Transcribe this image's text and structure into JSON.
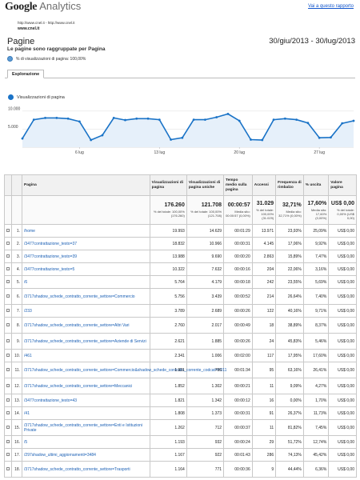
{
  "header": {
    "logo_google": "Google",
    "logo_analytics": "Analytics",
    "report_link": "Vai a questo rapporto",
    "urls": "http://www.cnel.it - http://www.cnel.it",
    "site": "www.cnel.it"
  },
  "report": {
    "title": "Pagine",
    "subtitle": "Le pagine sono raggruppate per Pagina",
    "date_range": "30/giu/2013 - 30/lug/2013",
    "segment_label": "% di visualizzazioni di pagina: 100,00%",
    "tab": "Esplorazione"
  },
  "chart_data": {
    "type": "area",
    "series_name": "Visualizzazioni di pagina",
    "y_ticks": [
      "10.000",
      "5.000"
    ],
    "ylim": [
      0,
      11500
    ],
    "x_tick_labels": [
      "6 lug",
      "13 lug",
      "20 lug",
      "27 lug"
    ],
    "x_tick_index": [
      6,
      13,
      20,
      27
    ],
    "values": [
      2400,
      7600,
      8100,
      8100,
      7900,
      7100,
      2000,
      3300,
      8100,
      7500,
      7900,
      7900,
      7600,
      2100,
      2600,
      7600,
      7600,
      8300,
      9200,
      7300,
      2100,
      2000,
      7600,
      7900,
      7600,
      6700,
      2600,
      2700,
      6600,
      7300
    ],
    "color": "#1a73c7"
  },
  "table": {
    "headers": [
      "Pagina",
      "Visualizzazioni di pagina",
      "Visualizzazioni di pagina uniche",
      "Tempo medio sulla pagina",
      "Accessi",
      "Frequenza di rimbalzo",
      "% uscita",
      "Valore pagina"
    ],
    "summary": [
      {
        "big": "176.260",
        "sub": "% del totale: 100,00% (176.260)"
      },
      {
        "big": "121.708",
        "sub": "% del totale: 100,00% (121.708)"
      },
      {
        "big": "00:00:57",
        "sub": "Media sito: 00:00:57 (0,00%)"
      },
      {
        "big": "31.029",
        "sub": "% del totale: 100,00% (31.029)"
      },
      {
        "big": "32,71%",
        "sub": "Media sito: 32,71% (0,00%)"
      },
      {
        "big": "17,60%",
        "sub": "Media sito: 17,60% (0,00%)"
      },
      {
        "big": "US$ 0,00",
        "sub": "% del totale: 0,00% (US$ 0,00)"
      }
    ],
    "rows": [
      {
        "n": "1.",
        "page": "/home",
        "v": [
          "19.993",
          "14.629",
          "00:01:29",
          "13.971",
          "23,93%",
          "25,09%",
          "US$ 0,00"
        ]
      },
      {
        "n": "2.",
        "page": "/3477contrattazione_testo=37",
        "v": [
          "18.832",
          "10.966",
          "00:00:31",
          "4.145",
          "17,06%",
          "9,92%",
          "US$ 0,00"
        ]
      },
      {
        "n": "3.",
        "page": "/3477contrattazione_testo=39",
        "v": [
          "13.988",
          "9.690",
          "00:00:20",
          "2.863",
          "15,89%",
          "7,47%",
          "US$ 0,00"
        ]
      },
      {
        "n": "4.",
        "page": "/3477contrattazione_testo=5",
        "v": [
          "10.322",
          "7.632",
          "00:00:16",
          "204",
          "22,06%",
          "3,16%",
          "US$ 0,00"
        ]
      },
      {
        "n": "5.",
        "page": "/6",
        "v": [
          "5.764",
          "4.179",
          "00:00:18",
          "242",
          "23,55%",
          "5,69%",
          "US$ 0,00"
        ]
      },
      {
        "n": "6.",
        "page": "/3717shadow_schede_contratto_corrente_settore=Commercio",
        "v": [
          "5.756",
          "3.439",
          "00:00:52",
          "214",
          "26,64%",
          "7,40%",
          "US$ 0,00"
        ]
      },
      {
        "n": "7.",
        "page": "/233",
        "v": [
          "3.789",
          "2.689",
          "00:00:26",
          "122",
          "40,16%",
          "9,71%",
          "US$ 0,00"
        ]
      },
      {
        "n": "8.",
        "page": "/3717shadow_schede_contratto_corrente_settore=Altri Vari",
        "v": [
          "2.760",
          "2.017",
          "00:00:49",
          "18",
          "38,89%",
          "8,37%",
          "US$ 0,00"
        ]
      },
      {
        "n": "9.",
        "page": "/3717shadow_schede_contratto_corrente_settore=Aziende di Servizi",
        "v": [
          "2.621",
          "1.885",
          "00:00:26",
          "24",
          "45,83%",
          "5,46%",
          "US$ 0,00"
        ]
      },
      {
        "n": "10.",
        "page": "/461",
        "v": [
          "2.341",
          "1.006",
          "00:02:00",
          "117",
          "17,95%",
          "17,60%",
          "US$ 0,00"
        ]
      },
      {
        "n": "11.",
        "page": "/3717shadow_schede_contratto_corrente_settore=Commercio&shadow_schede_contratto_corrente_codcat=H011",
        "v": [
          "1.931",
          "796",
          "00:01:34",
          "95",
          "63,16%",
          "26,41%",
          "US$ 0,00"
        ]
      },
      {
        "n": "12.",
        "page": "/3717shadow_schede_contratto_corrente_settore=Meccanici",
        "v": [
          "1.852",
          "1.302",
          "00:00:21",
          "11",
          "9,09%",
          "4,27%",
          "US$ 0,00"
        ]
      },
      {
        "n": "13.",
        "page": "/3477contrattazione_testo=43",
        "v": [
          "1.821",
          "1.342",
          "00:00:12",
          "16",
          "0,00%",
          "1,70%",
          "US$ 0,00"
        ]
      },
      {
        "n": "14.",
        "page": "/41",
        "v": [
          "1.808",
          "1.373",
          "00:00:31",
          "91",
          "26,37%",
          "11,73%",
          "US$ 0,00"
        ]
      },
      {
        "n": "15.",
        "page": "/3717shadow_schede_contratto_corrente_settore=Enti e Istituzioni Private",
        "v": [
          "1.262",
          "712",
          "00:00:37",
          "11",
          "81,82%",
          "7,45%",
          "US$ 0,00"
        ]
      },
      {
        "n": "16.",
        "page": "/5",
        "v": [
          "1.193",
          "932",
          "00:00:24",
          "29",
          "51,72%",
          "12,74%",
          "US$ 0,00"
        ]
      },
      {
        "n": "17.",
        "page": "/297shadow_ultimi_aggiornamenti=3484",
        "v": [
          "1.167",
          "922",
          "00:01:43",
          "286",
          "74,13%",
          "45,42%",
          "US$ 0,00"
        ]
      },
      {
        "n": "18.",
        "page": "/3717shadow_schede_contratto_corrente_settore=Trasporti",
        "v": [
          "1.164",
          "771",
          "00:00:36",
          "9",
          "44,44%",
          "6,36%",
          "US$ 0,00"
        ]
      }
    ]
  }
}
